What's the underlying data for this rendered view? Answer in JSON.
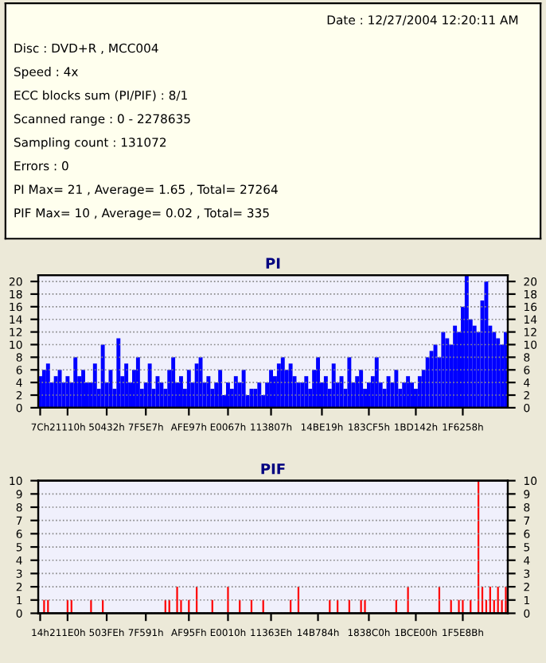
{
  "chart_data": [
    {
      "type": "other",
      "title": "Date : 12/27/2004 12:20:11 AM",
      "annotations": [
        "Disc : DVD+R , MCC004",
        "Speed : 4x",
        "ECC blocks sum (PI/PIF) : 8/1",
        "Scanned range : 0 - 2278635",
        "Sampling count : 131072",
        "Errors : 0",
        "PI Max= 21 , Average= 1.65 , Total= 27264",
        "PIF Max= 10 , Average= 0.02 , Total= 335"
      ]
    },
    {
      "type": "bar",
      "title": "PI",
      "grid": "y",
      "categories": [
        "7Ch",
        null,
        null,
        null,
        null,
        null,
        null,
        "21110h",
        null,
        null,
        null,
        null,
        null,
        null,
        null,
        null,
        null,
        "50432h",
        null,
        null,
        null,
        null,
        null,
        null,
        null,
        null,
        null,
        "7F5E7h",
        null,
        null,
        null,
        null,
        null,
        null,
        null,
        null,
        null,
        null,
        "AFE97h",
        null,
        null,
        null,
        null,
        null,
        null,
        null,
        null,
        null,
        "E0067h",
        null,
        null,
        null,
        null,
        null,
        null,
        null,
        null,
        null,
        null,
        "113807h",
        null,
        null,
        null,
        null,
        null,
        null,
        null,
        null,
        null,
        null,
        null,
        null,
        "14BE19h",
        null,
        null,
        null,
        null,
        null,
        null,
        null,
        null,
        null,
        null,
        null,
        "183CF5h",
        null,
        null,
        null,
        null,
        null,
        null,
        null,
        null,
        null,
        null,
        null,
        "1BD142h",
        null,
        null,
        null,
        null,
        null,
        null,
        null,
        null,
        null,
        null,
        null,
        "1F6258h",
        null,
        null,
        null,
        null,
        null,
        null,
        null,
        null,
        null,
        null,
        null
      ],
      "series": [
        {
          "color": "#0000ff",
          "values": [
            5,
            6,
            7,
            4,
            5,
            6,
            4,
            5,
            4,
            8,
            5,
            6,
            4,
            4,
            7,
            3,
            10,
            4,
            6,
            3,
            11,
            5,
            7,
            4,
            6,
            8,
            3,
            4,
            7,
            3,
            5,
            4,
            3,
            6,
            8,
            4,
            5,
            3,
            6,
            4,
            7,
            8,
            4,
            5,
            3,
            4,
            6,
            2,
            4,
            3,
            5,
            4,
            6,
            2,
            3,
            3,
            4,
            2,
            4,
            6,
            5,
            7,
            8,
            6,
            7,
            5,
            4,
            4,
            5,
            3,
            6,
            8,
            4,
            5,
            3,
            7,
            4,
            5,
            3,
            8,
            4,
            5,
            6,
            3,
            4,
            5,
            8,
            4,
            3,
            5,
            4,
            6,
            3,
            4,
            5,
            4,
            3,
            5,
            6,
            8,
            9,
            10,
            8,
            12,
            11,
            10,
            13,
            12,
            16,
            21,
            14,
            13,
            12,
            17,
            20,
            13,
            12,
            11,
            10,
            12
          ]
        }
      ],
      "ylim": [
        0,
        21
      ],
      "yticks": [
        0,
        2,
        4,
        6,
        8,
        10,
        12,
        14,
        16,
        18,
        20
      ],
      "y2lim": [
        0,
        21
      ],
      "y2ticks": [
        0,
        2,
        4,
        6,
        8,
        10,
        12,
        14,
        16,
        18,
        20
      ]
    },
    {
      "type": "bar",
      "title": "PIF",
      "grid": "y",
      "categories": [
        "14h",
        null,
        null,
        null,
        null,
        null,
        null,
        "211E0h",
        null,
        null,
        null,
        null,
        null,
        null,
        null,
        null,
        null,
        "503FEh",
        null,
        null,
        null,
        null,
        null,
        null,
        null,
        null,
        null,
        "7F591h",
        null,
        null,
        null,
        null,
        null,
        null,
        null,
        null,
        null,
        null,
        "AF95Fh",
        null,
        null,
        null,
        null,
        null,
        null,
        null,
        null,
        null,
        "E0010h",
        null,
        null,
        null,
        null,
        null,
        null,
        null,
        null,
        null,
        null,
        "11363Eh",
        null,
        null,
        null,
        null,
        null,
        null,
        null,
        null,
        null,
        null,
        null,
        "14B784h",
        null,
        null,
        null,
        null,
        null,
        null,
        null,
        null,
        null,
        null,
        null,
        null,
        "1838C0h",
        null,
        null,
        null,
        null,
        null,
        null,
        null,
        null,
        null,
        null,
        null,
        "1BCE00h",
        null,
        null,
        null,
        null,
        null,
        null,
        null,
        null,
        null,
        null,
        null,
        "1F5E8Bh",
        null,
        null,
        null,
        null,
        null,
        null,
        null,
        null,
        null,
        null,
        null
      ],
      "series": [
        {
          "color": "#ff0000",
          "values": [
            0,
            1,
            1,
            0,
            0,
            0,
            0,
            1,
            1,
            0,
            0,
            0,
            0,
            1,
            0,
            0,
            1,
            0,
            0,
            0,
            0,
            0,
            0,
            0,
            0,
            0,
            0,
            0,
            0,
            0,
            0,
            0,
            1,
            1,
            0,
            2,
            1,
            0,
            1,
            0,
            2,
            0,
            0,
            0,
            1,
            0,
            0,
            0,
            2,
            0,
            0,
            1,
            0,
            0,
            1,
            0,
            0,
            1,
            0,
            0,
            0,
            0,
            0,
            0,
            1,
            0,
            2,
            0,
            0,
            0,
            0,
            0,
            0,
            0,
            1,
            0,
            1,
            0,
            0,
            1,
            0,
            0,
            1,
            1,
            0,
            0,
            0,
            0,
            0,
            0,
            0,
            1,
            0,
            0,
            2,
            0,
            0,
            0,
            0,
            0,
            0,
            0,
            2,
            0,
            0,
            1,
            0,
            1,
            1,
            0,
            1,
            0,
            10,
            2,
            1,
            2,
            1,
            2,
            1,
            2
          ]
        }
      ],
      "ylim": [
        0,
        10
      ],
      "yticks": [
        0,
        1,
        2,
        3,
        4,
        5,
        6,
        7,
        8,
        9,
        10
      ],
      "y2lim": [
        0,
        10
      ],
      "y2ticks": [
        0,
        1,
        2,
        3,
        4,
        5,
        6,
        7,
        8,
        9,
        10
      ]
    }
  ]
}
